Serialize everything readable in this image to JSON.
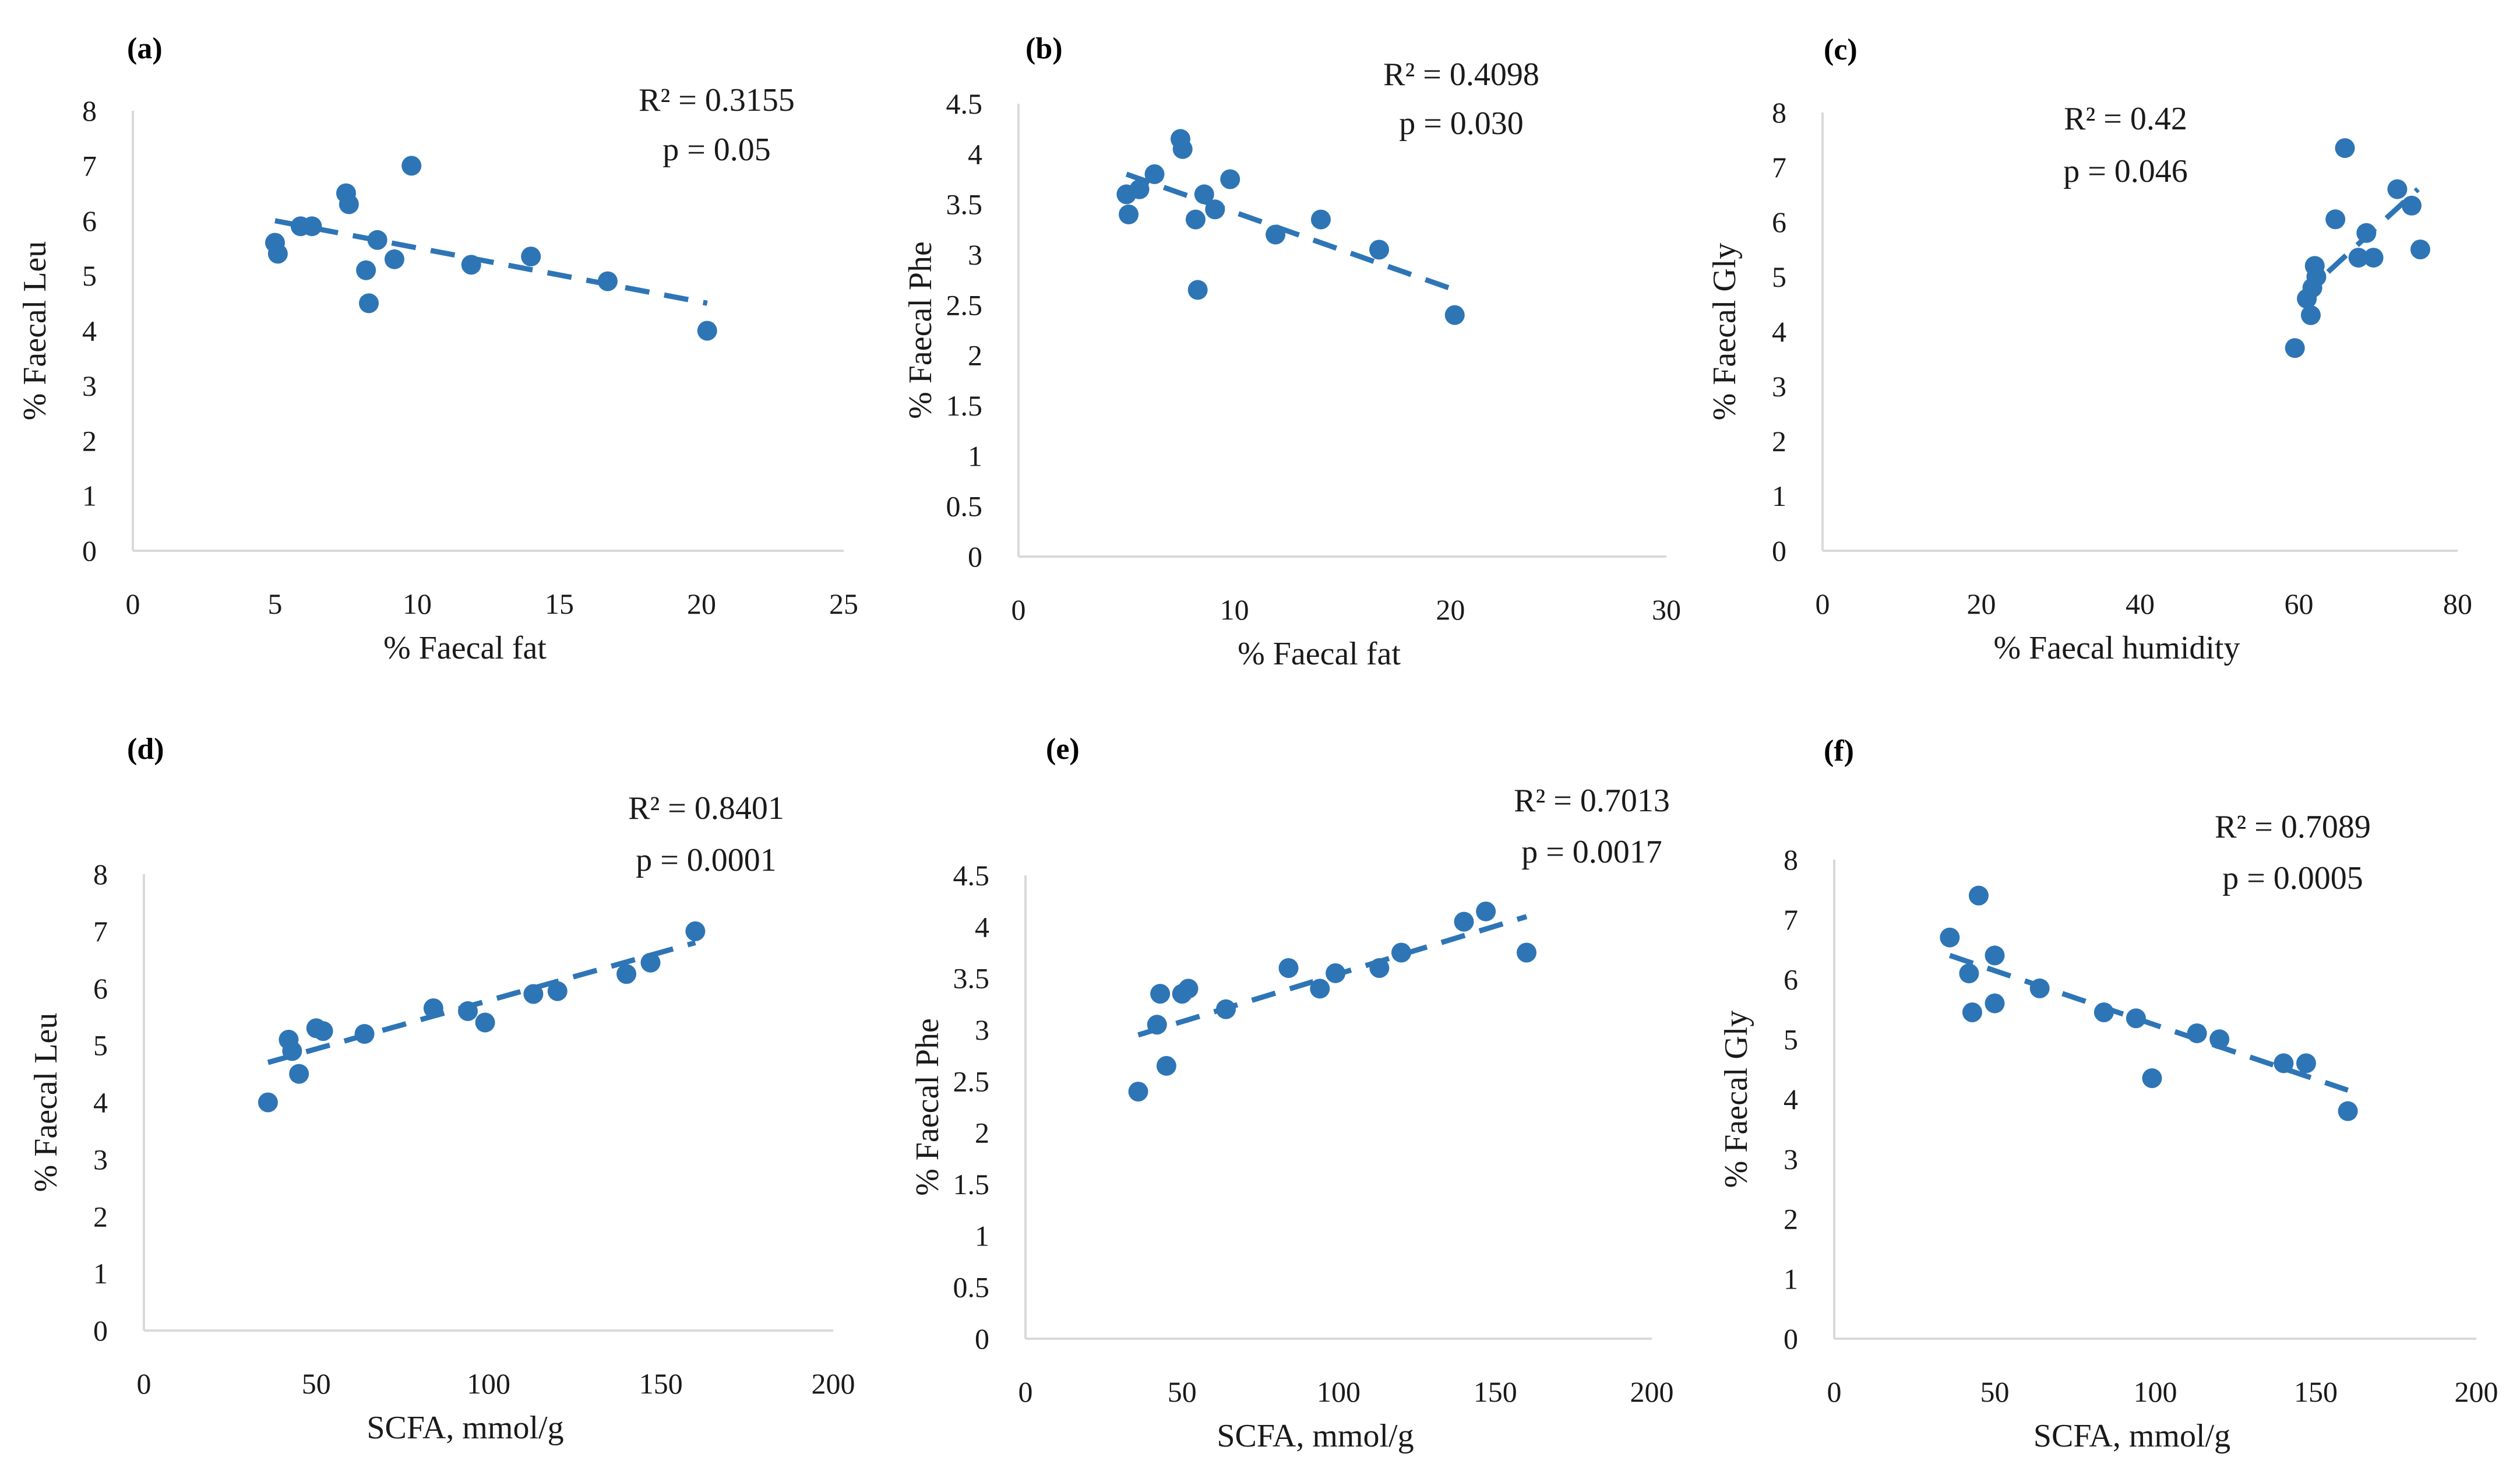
{
  "colors": {
    "marker": "#2e75b6",
    "trend": "#2e75b6",
    "axis": "#d9d9d9",
    "text": "#1a1a1a"
  },
  "chart_data": [
    {
      "type": "scatter",
      "panel_label": "(a)",
      "xlabel": "% Faecal fat",
      "ylabel": "% Faecal Leu",
      "xlim": [
        0,
        25
      ],
      "ylim": [
        0,
        8
      ],
      "xticks": [
        0,
        5,
        10,
        15,
        20,
        25
      ],
      "yticks": [
        0,
        1,
        2,
        3,
        4,
        5,
        6,
        7,
        8
      ],
      "stats": {
        "r2": "R² = 0.3155",
        "p": "p = 0.05"
      },
      "trendline": {
        "x": [
          5,
          20.2
        ],
        "y": [
          6.0,
          4.5
        ]
      },
      "points": [
        {
          "x": 5.0,
          "y": 5.6
        },
        {
          "x": 5.1,
          "y": 5.4
        },
        {
          "x": 5.9,
          "y": 5.9
        },
        {
          "x": 6.3,
          "y": 5.9
        },
        {
          "x": 7.5,
          "y": 6.5
        },
        {
          "x": 7.6,
          "y": 6.3
        },
        {
          "x": 8.2,
          "y": 5.1
        },
        {
          "x": 8.3,
          "y": 4.5
        },
        {
          "x": 8.6,
          "y": 5.65
        },
        {
          "x": 9.2,
          "y": 5.3
        },
        {
          "x": 9.8,
          "y": 7.0
        },
        {
          "x": 11.9,
          "y": 5.2
        },
        {
          "x": 14.0,
          "y": 5.35
        },
        {
          "x": 16.7,
          "y": 4.9
        },
        {
          "x": 20.2,
          "y": 4.0
        }
      ]
    },
    {
      "type": "scatter",
      "panel_label": "(b)",
      "xlabel": "% Faecal fat",
      "ylabel": "% Faecal Phe",
      "xlim": [
        0,
        30
      ],
      "ylim": [
        0,
        4.5
      ],
      "xticks": [
        0,
        10,
        20,
        30
      ],
      "yticks": [
        0,
        0.5,
        1,
        1.5,
        2,
        2.5,
        3,
        3.5,
        4,
        4.5
      ],
      "stats": {
        "r2": "R² = 0.4098",
        "p": "p = 0.030"
      },
      "trendline": {
        "x": [
          5,
          20.2
        ],
        "y": [
          3.8,
          2.65
        ]
      },
      "points": [
        {
          "x": 5.0,
          "y": 3.6
        },
        {
          "x": 5.1,
          "y": 3.4
        },
        {
          "x": 5.6,
          "y": 3.65
        },
        {
          "x": 6.3,
          "y": 3.8
        },
        {
          "x": 7.5,
          "y": 4.15
        },
        {
          "x": 7.6,
          "y": 4.05
        },
        {
          "x": 8.2,
          "y": 3.35
        },
        {
          "x": 8.3,
          "y": 2.65
        },
        {
          "x": 8.6,
          "y": 3.6
        },
        {
          "x": 9.1,
          "y": 3.45
        },
        {
          "x": 9.8,
          "y": 3.75
        },
        {
          "x": 11.9,
          "y": 3.2
        },
        {
          "x": 14.0,
          "y": 3.35
        },
        {
          "x": 16.7,
          "y": 3.05
        },
        {
          "x": 20.2,
          "y": 2.4
        }
      ]
    },
    {
      "type": "scatter",
      "panel_label": "(c)",
      "xlabel": "% Faecal humidity",
      "ylabel": "% Faecal Gly",
      "xlim": [
        0,
        80
      ],
      "ylim": [
        0,
        8
      ],
      "xticks": [
        0,
        20,
        40,
        60,
        80
      ],
      "yticks": [
        0,
        1,
        2,
        3,
        4,
        5,
        6,
        7,
        8
      ],
      "stats": {
        "r2": "R² = 0.42",
        "p": "p = 0.046"
      },
      "trendline": {
        "x": [
          60,
          75
        ],
        "y": [
          4.6,
          6.6
        ]
      },
      "points": [
        {
          "x": 59.5,
          "y": 3.7
        },
        {
          "x": 61.0,
          "y": 4.6
        },
        {
          "x": 61.5,
          "y": 4.3
        },
        {
          "x": 61.7,
          "y": 4.8
        },
        {
          "x": 62.0,
          "y": 5.2
        },
        {
          "x": 62.2,
          "y": 5.0
        },
        {
          "x": 64.6,
          "y": 6.05
        },
        {
          "x": 65.8,
          "y": 7.35
        },
        {
          "x": 67.5,
          "y": 5.35
        },
        {
          "x": 68.5,
          "y": 5.8
        },
        {
          "x": 69.4,
          "y": 5.35
        },
        {
          "x": 72.4,
          "y": 6.6
        },
        {
          "x": 74.2,
          "y": 6.3
        },
        {
          "x": 75.3,
          "y": 5.5
        }
      ]
    },
    {
      "type": "scatter",
      "panel_label": "(d)",
      "xlabel": "SCFA, mmol/g",
      "ylabel": "% Faecal Leu",
      "xlim": [
        0,
        200
      ],
      "ylim": [
        0,
        8
      ],
      "xticks": [
        0,
        50,
        100,
        150,
        200
      ],
      "yticks": [
        0,
        1,
        2,
        3,
        4,
        5,
        6,
        7,
        8
      ],
      "stats": {
        "r2": "R² = 0.8401",
        "p": "p = 0.0001"
      },
      "trendline": {
        "x": [
          36,
          160
        ],
        "y": [
          4.7,
          6.8
        ]
      },
      "points": [
        {
          "x": 36,
          "y": 4.0
        },
        {
          "x": 42,
          "y": 5.1
        },
        {
          "x": 43,
          "y": 4.9
        },
        {
          "x": 45,
          "y": 4.5
        },
        {
          "x": 50,
          "y": 5.3
        },
        {
          "x": 52,
          "y": 5.25
        },
        {
          "x": 64,
          "y": 5.2
        },
        {
          "x": 84,
          "y": 5.65
        },
        {
          "x": 94,
          "y": 5.6
        },
        {
          "x": 99,
          "y": 5.4
        },
        {
          "x": 113,
          "y": 5.9
        },
        {
          "x": 120,
          "y": 5.95
        },
        {
          "x": 140,
          "y": 6.25
        },
        {
          "x": 147,
          "y": 6.45
        },
        {
          "x": 160,
          "y": 7.0
        }
      ]
    },
    {
      "type": "scatter",
      "panel_label": "(e)",
      "xlabel": "SCFA, mmol/g",
      "ylabel": "% Faecal Phe",
      "xlim": [
        0,
        200
      ],
      "ylim": [
        0,
        4.5
      ],
      "xticks": [
        0,
        50,
        100,
        150,
        200
      ],
      "yticks": [
        0,
        0.5,
        1,
        1.5,
        2,
        2.5,
        3,
        3.5,
        4,
        4.5
      ],
      "stats": {
        "r2": "R² = 0.7013",
        "p": "p = 0.0017"
      },
      "trendline": {
        "x": [
          36,
          160
        ],
        "y": [
          2.95,
          4.1
        ]
      },
      "points": [
        {
          "x": 36,
          "y": 2.4
        },
        {
          "x": 42,
          "y": 3.05
        },
        {
          "x": 43,
          "y": 3.35
        },
        {
          "x": 45,
          "y": 2.65
        },
        {
          "x": 50,
          "y": 3.35
        },
        {
          "x": 52,
          "y": 3.4
        },
        {
          "x": 64,
          "y": 3.2
        },
        {
          "x": 84,
          "y": 3.6
        },
        {
          "x": 94,
          "y": 3.4
        },
        {
          "x": 99,
          "y": 3.55
        },
        {
          "x": 113,
          "y": 3.6
        },
        {
          "x": 120,
          "y": 3.75
        },
        {
          "x": 140,
          "y": 4.05
        },
        {
          "x": 147,
          "y": 4.15
        },
        {
          "x": 160,
          "y": 3.75
        }
      ]
    },
    {
      "type": "scatter",
      "panel_label": "(f)",
      "xlabel": "SCFA, mmol/g",
      "ylabel": "% Faecal Gly",
      "xlim": [
        0,
        200
      ],
      "ylim": [
        0,
        8
      ],
      "xticks": [
        0,
        50,
        100,
        150,
        200
      ],
      "yticks": [
        0,
        1,
        2,
        3,
        4,
        5,
        6,
        7,
        8
      ],
      "stats": {
        "r2": "R² = 0.7089",
        "p": "p = 0.0005"
      },
      "trendline": {
        "x": [
          36,
          160
        ],
        "y": [
          6.4,
          4.15
        ]
      },
      "points": [
        {
          "x": 36,
          "y": 6.7
        },
        {
          "x": 42,
          "y": 6.1
        },
        {
          "x": 43,
          "y": 5.45
        },
        {
          "x": 45,
          "y": 7.4
        },
        {
          "x": 50,
          "y": 6.4
        },
        {
          "x": 50,
          "y": 5.6
        },
        {
          "x": 64,
          "y": 5.85
        },
        {
          "x": 84,
          "y": 5.45
        },
        {
          "x": 94,
          "y": 5.35
        },
        {
          "x": 99,
          "y": 4.35
        },
        {
          "x": 113,
          "y": 5.1
        },
        {
          "x": 120,
          "y": 5.0
        },
        {
          "x": 140,
          "y": 4.6
        },
        {
          "x": 147,
          "y": 4.6
        },
        {
          "x": 160,
          "y": 3.8
        }
      ]
    }
  ]
}
